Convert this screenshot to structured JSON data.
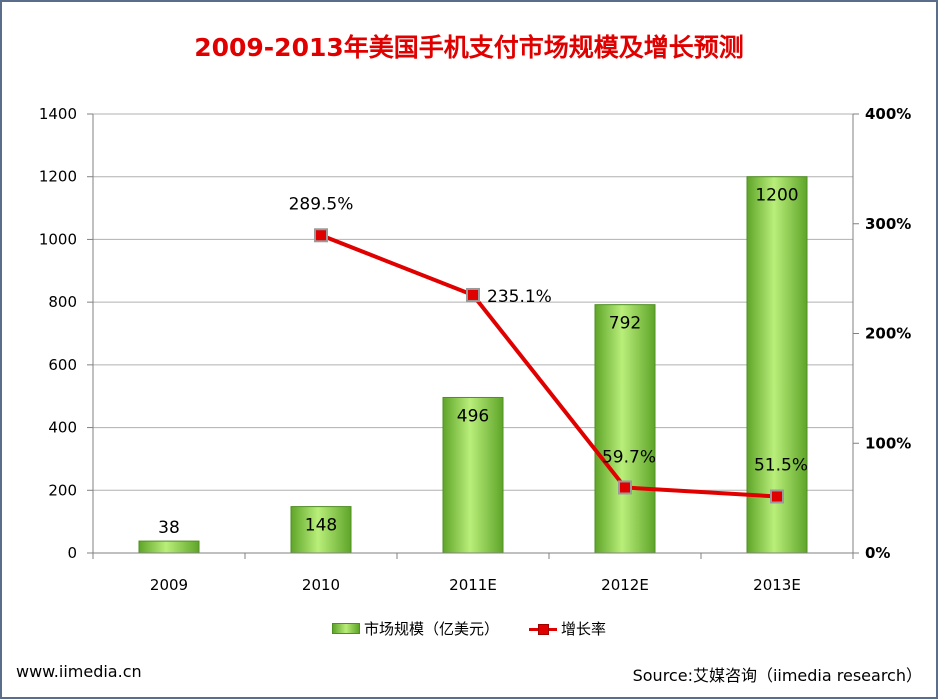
{
  "chart_data": {
    "type": "bar",
    "title": "2009-2013年美国手机支付市场规模及增长预测",
    "categories": [
      "2009",
      "2010",
      "2011E",
      "2012E",
      "2013E"
    ],
    "series": [
      {
        "name": "市场规模（亿美元）",
        "kind": "bar",
        "axis": "left",
        "values": [
          38,
          148,
          496,
          792,
          1200
        ],
        "labels": [
          "38",
          "148",
          "496",
          "792",
          "1200"
        ]
      },
      {
        "name": "增长率",
        "kind": "line",
        "axis": "right",
        "values": [
          null,
          289.5,
          235.1,
          59.7,
          51.5
        ],
        "labels": [
          "",
          "289.5%",
          "235.1%",
          "59.7%",
          "51.5%"
        ]
      }
    ],
    "y_left": {
      "min": 0,
      "max": 1400,
      "ticks": [
        "0",
        "200",
        "400",
        "600",
        "800",
        "1000",
        "1200",
        "1400"
      ]
    },
    "y_right": {
      "min": 0,
      "max": 400,
      "ticks": [
        "0%",
        "100%",
        "200%",
        "300%",
        "400%"
      ]
    },
    "grid": true,
    "legend": "bottom",
    "colors": {
      "bar": "#7cc63a",
      "bar_edge": "#4f8f22",
      "line": "#e00000",
      "grid": "#b0b0b0",
      "title": "#e00000"
    }
  },
  "footer": {
    "left": "www.iimedia.cn",
    "right": "Source:艾媒咨询（iimedia research）"
  }
}
